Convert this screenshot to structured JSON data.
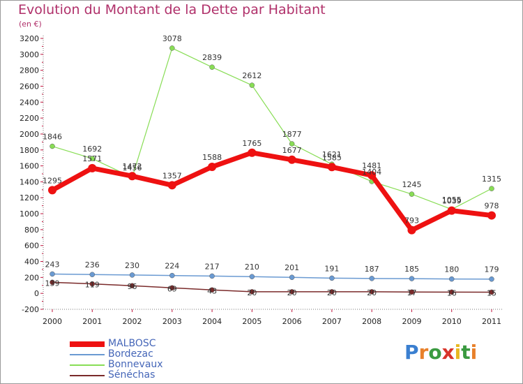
{
  "header": {
    "title": "Evolution du Montant de la Dette par Habitant",
    "subtitle": "(en €)"
  },
  "logo": {
    "text": "Proxiti",
    "letters": [
      "P",
      "r",
      "o",
      "x",
      "i",
      "t",
      "i"
    ],
    "colors": [
      "#3a7fd0",
      "#e8802a",
      "#3a9a40",
      "#d8342a",
      "#e8b820",
      "#3a9a40",
      "#e8802a"
    ]
  },
  "chart_data": {
    "type": "line",
    "title": "Evolution du Montant de la Dette par Habitant",
    "subtitle": "(en €)",
    "x": [
      "2000",
      "2001",
      "2002",
      "2003",
      "2004",
      "2005",
      "2006",
      "2007",
      "2008",
      "2009",
      "2010",
      "2011"
    ],
    "ylim": [
      -200,
      3200
    ],
    "yticks": [
      -200,
      0,
      200,
      400,
      600,
      800,
      1000,
      1200,
      1400,
      1600,
      1800,
      2000,
      2200,
      2400,
      2600,
      2800,
      3000,
      3200
    ],
    "grid": false,
    "legend_position": "bottom-left",
    "series": [
      {
        "name": "MALBOSC",
        "color": "#ee1111",
        "values": [
          1295,
          1571,
          1472,
          1357,
          1588,
          1765,
          1677,
          1585,
          1481,
          793,
          1039,
          978
        ]
      },
      {
        "name": "Bordezac",
        "color": "#6a9ad2",
        "values": [
          243,
          236,
          230,
          224,
          217,
          210,
          201,
          191,
          187,
          185,
          180,
          179
        ]
      },
      {
        "name": "Bonnevaux",
        "color": "#88dd55",
        "values": [
          1846,
          1692,
          1456,
          3078,
          2839,
          2612,
          1877,
          1621,
          1404,
          1245,
          1055,
          1315
        ]
      },
      {
        "name": "Sénéchas",
        "color": "#7a2a2a",
        "values": [
          139,
          119,
          96,
          69,
          43,
          20,
          20,
          20,
          20,
          17,
          16,
          15
        ]
      }
    ]
  }
}
